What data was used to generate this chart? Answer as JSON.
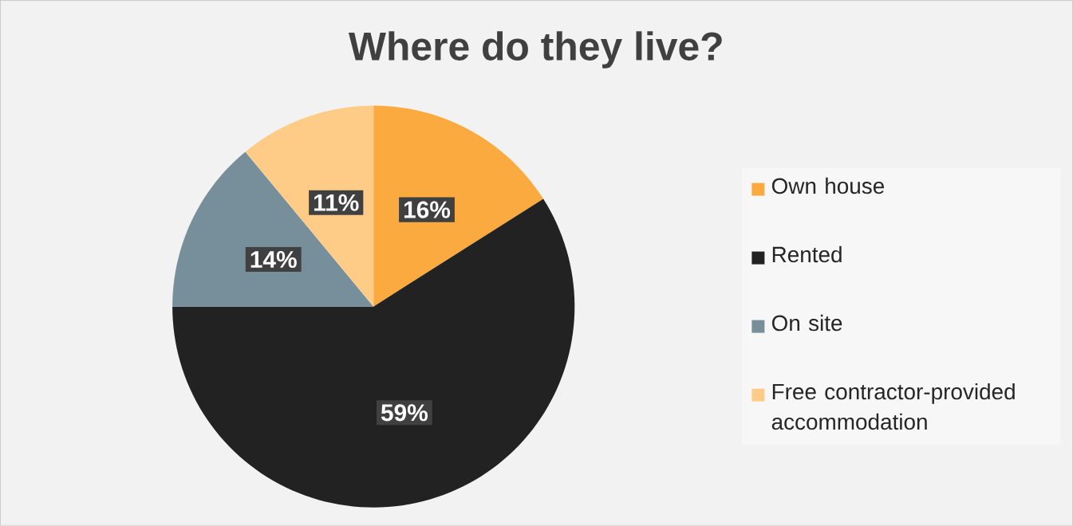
{
  "chart_data": {
    "type": "pie",
    "title": "Where do they live?",
    "categories": [
      "Own house",
      "Rented",
      "On site",
      "Free contractor-provided accommodation"
    ],
    "values": [
      16,
      59,
      14,
      11
    ],
    "value_labels": [
      "16%",
      "59%",
      "14%",
      "11%"
    ],
    "colors": [
      "#fbaa3f",
      "#222222",
      "#778f9a",
      "#ffcc88"
    ],
    "legend": "right"
  }
}
